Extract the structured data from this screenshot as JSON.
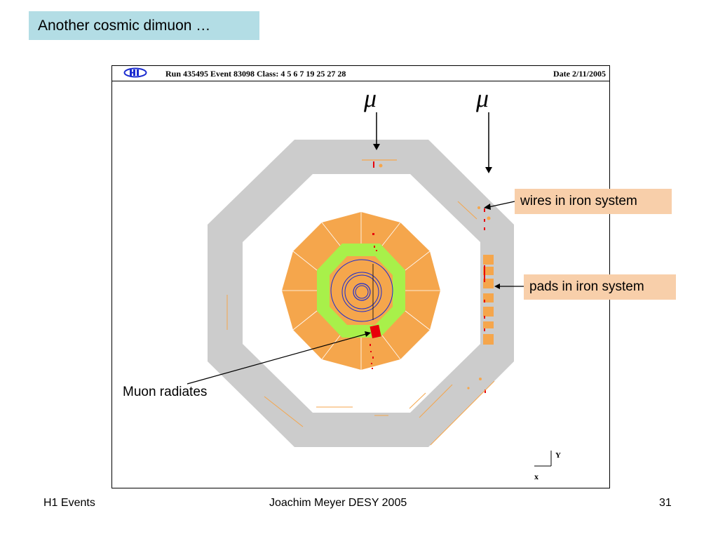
{
  "slide": {
    "title": "Another cosmic dimuon  …"
  },
  "display": {
    "run_info": "Run 435495  Event 83098  Class: 4 5 6 7 19 25 27 28",
    "date_info": "Date  2/11/2005",
    "axis_x": "x",
    "axis_y": "Y",
    "logo_icon": "h1-logo-icon",
    "colors": {
      "iron": "#cccccc",
      "calorimeter": "#f5a64c",
      "spacal": "#a8f04a",
      "tracker": "#1a2bd0",
      "hits": "#e8000a",
      "title_bg": "#b3dde5",
      "callout_bg": "#f8cfaa"
    }
  },
  "annotations": {
    "mu_left": "μ",
    "mu_right": "μ",
    "wires": "wires in iron system",
    "pads": "pads in iron system",
    "radiates": "Muon radiates"
  },
  "footer": {
    "left": "H1 Events",
    "center": "Joachim Meyer  DESY  2005",
    "page": "31"
  }
}
